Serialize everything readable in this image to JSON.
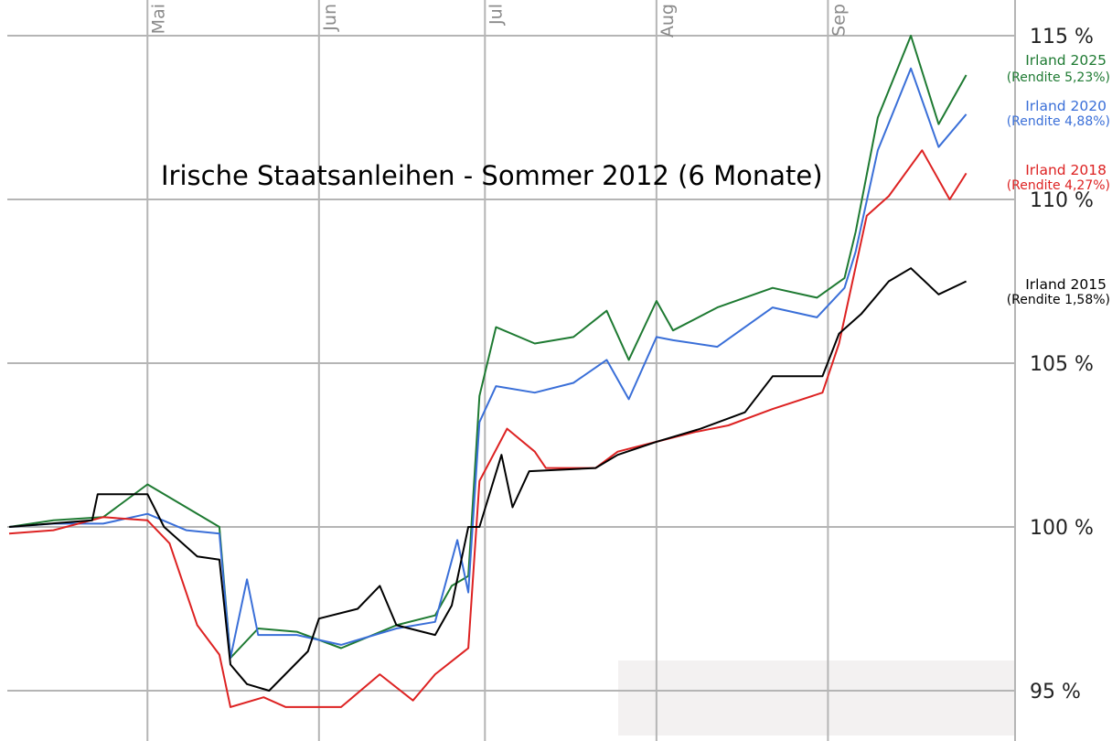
{
  "chart_data": {
    "type": "line",
    "title": "Irische Staatsanleihen - Sommer 2012 (6 Monate)",
    "xlabel": "",
    "ylabel": "",
    "x_range": [
      "2012-04-06",
      "2012-09-28"
    ],
    "ylim": [
      93,
      115.5
    ],
    "yticks": [
      {
        "value": 95,
        "label": "95 %"
      },
      {
        "value": 100,
        "label": "100 %"
      },
      {
        "value": 105,
        "label": "105 %"
      },
      {
        "value": 110,
        "label": "110 %"
      },
      {
        "value": 115,
        "label": "115 %"
      }
    ],
    "month_ticks": [
      {
        "date": "2012-05-01",
        "label": "Mai"
      },
      {
        "date": "2012-06-01",
        "label": "Jun"
      },
      {
        "date": "2012-07-01",
        "label": "Jul"
      },
      {
        "date": "2012-08-01",
        "label": "Aug"
      },
      {
        "date": "2012-09-01",
        "label": "Sep"
      }
    ],
    "grid": true,
    "legend": "right",
    "series": [
      {
        "name": "Irland 2025",
        "yield_label": "(Rendite 5,23%)",
        "color": "#1e7a32",
        "points": [
          [
            "2012-04-06",
            100.0
          ],
          [
            "2012-04-14",
            100.2
          ],
          [
            "2012-04-23",
            100.3
          ],
          [
            "2012-05-01",
            101.3
          ],
          [
            "2012-05-08",
            100.6
          ],
          [
            "2012-05-14",
            100.0
          ],
          [
            "2012-05-16",
            96.0
          ],
          [
            "2012-05-21",
            96.9
          ],
          [
            "2012-05-28",
            96.8
          ],
          [
            "2012-06-05",
            96.3
          ],
          [
            "2012-06-15",
            97.0
          ],
          [
            "2012-06-22",
            97.3
          ],
          [
            "2012-06-25",
            98.2
          ],
          [
            "2012-06-28",
            98.5
          ],
          [
            "2012-06-30",
            104.0
          ],
          [
            "2012-07-03",
            106.1
          ],
          [
            "2012-07-10",
            105.6
          ],
          [
            "2012-07-17",
            105.8
          ],
          [
            "2012-07-23",
            106.6
          ],
          [
            "2012-07-27",
            105.1
          ],
          [
            "2012-08-01",
            106.9
          ],
          [
            "2012-08-04",
            106.0
          ],
          [
            "2012-08-12",
            106.7
          ],
          [
            "2012-08-22",
            107.3
          ],
          [
            "2012-08-30",
            107.0
          ],
          [
            "2012-09-04",
            107.6
          ],
          [
            "2012-09-06",
            109.0
          ],
          [
            "2012-09-10",
            112.5
          ],
          [
            "2012-09-16",
            115.0
          ],
          [
            "2012-09-21",
            112.3
          ],
          [
            "2012-09-26",
            113.8
          ]
        ]
      },
      {
        "name": "Irland 2020",
        "yield_label": "(Rendite 4,88%)",
        "color": "#3a6fd8",
        "points": [
          [
            "2012-04-06",
            100.0
          ],
          [
            "2012-04-14",
            100.1
          ],
          [
            "2012-04-23",
            100.1
          ],
          [
            "2012-05-01",
            100.4
          ],
          [
            "2012-05-08",
            99.9
          ],
          [
            "2012-05-14",
            99.8
          ],
          [
            "2012-05-16",
            96.0
          ],
          [
            "2012-05-19",
            98.4
          ],
          [
            "2012-05-21",
            96.7
          ],
          [
            "2012-05-28",
            96.7
          ],
          [
            "2012-06-05",
            96.4
          ],
          [
            "2012-06-15",
            96.9
          ],
          [
            "2012-06-22",
            97.1
          ],
          [
            "2012-06-26",
            99.6
          ],
          [
            "2012-06-28",
            98.0
          ],
          [
            "2012-06-30",
            103.2
          ],
          [
            "2012-07-03",
            104.3
          ],
          [
            "2012-07-10",
            104.1
          ],
          [
            "2012-07-17",
            104.4
          ],
          [
            "2012-07-23",
            105.1
          ],
          [
            "2012-07-27",
            103.9
          ],
          [
            "2012-08-01",
            105.8
          ],
          [
            "2012-08-04",
            105.7
          ],
          [
            "2012-08-12",
            105.5
          ],
          [
            "2012-08-22",
            106.7
          ],
          [
            "2012-08-30",
            106.4
          ],
          [
            "2012-09-04",
            107.3
          ],
          [
            "2012-09-06",
            108.4
          ],
          [
            "2012-09-10",
            111.5
          ],
          [
            "2012-09-16",
            114.0
          ],
          [
            "2012-09-21",
            111.6
          ],
          [
            "2012-09-26",
            112.6
          ]
        ]
      },
      {
        "name": "Irland 2018",
        "yield_label": "(Rendite 4,27%)",
        "color": "#dd2222",
        "points": [
          [
            "2012-04-06",
            99.8
          ],
          [
            "2012-04-14",
            99.9
          ],
          [
            "2012-04-23",
            100.3
          ],
          [
            "2012-05-01",
            100.2
          ],
          [
            "2012-05-05",
            99.5
          ],
          [
            "2012-05-10",
            97.0
          ],
          [
            "2012-05-14",
            96.1
          ],
          [
            "2012-05-16",
            94.5
          ],
          [
            "2012-05-22",
            94.8
          ],
          [
            "2012-05-26",
            94.5
          ],
          [
            "2012-06-05",
            94.5
          ],
          [
            "2012-06-12",
            95.5
          ],
          [
            "2012-06-18",
            94.7
          ],
          [
            "2012-06-22",
            95.5
          ],
          [
            "2012-06-28",
            96.3
          ],
          [
            "2012-06-30",
            101.4
          ],
          [
            "2012-07-05",
            103.0
          ],
          [
            "2012-07-10",
            102.3
          ],
          [
            "2012-07-12",
            101.8
          ],
          [
            "2012-07-21",
            101.8
          ],
          [
            "2012-07-25",
            102.3
          ],
          [
            "2012-08-01",
            102.6
          ],
          [
            "2012-08-08",
            102.9
          ],
          [
            "2012-08-14",
            103.1
          ],
          [
            "2012-08-22",
            103.6
          ],
          [
            "2012-08-31",
            104.1
          ],
          [
            "2012-09-03",
            105.6
          ],
          [
            "2012-09-08",
            109.5
          ],
          [
            "2012-09-12",
            110.1
          ],
          [
            "2012-09-18",
            111.5
          ],
          [
            "2012-09-23",
            110.0
          ],
          [
            "2012-09-26",
            110.8
          ]
        ]
      },
      {
        "name": "Irland 2015",
        "yield_label": "(Rendite 1,58%)",
        "color": "#000000",
        "points": [
          [
            "2012-04-06",
            100.0
          ],
          [
            "2012-04-21",
            100.2
          ],
          [
            "2012-04-22",
            101.0
          ],
          [
            "2012-05-01",
            101.0
          ],
          [
            "2012-05-04",
            100.0
          ],
          [
            "2012-05-10",
            99.1
          ],
          [
            "2012-05-14",
            99.0
          ],
          [
            "2012-05-16",
            95.8
          ],
          [
            "2012-05-19",
            95.2
          ],
          [
            "2012-05-23",
            95.0
          ],
          [
            "2012-05-30",
            96.2
          ],
          [
            "2012-06-01",
            97.2
          ],
          [
            "2012-06-08",
            97.5
          ],
          [
            "2012-06-12",
            98.2
          ],
          [
            "2012-06-15",
            97.0
          ],
          [
            "2012-06-22",
            96.7
          ],
          [
            "2012-06-25",
            97.6
          ],
          [
            "2012-06-28",
            100.0
          ],
          [
            "2012-06-30",
            100.0
          ],
          [
            "2012-07-04",
            102.2
          ],
          [
            "2012-07-06",
            100.6
          ],
          [
            "2012-07-09",
            101.7
          ],
          [
            "2012-07-21",
            101.8
          ],
          [
            "2012-07-25",
            102.2
          ],
          [
            "2012-08-01",
            102.6
          ],
          [
            "2012-08-09",
            103.0
          ],
          [
            "2012-08-17",
            103.5
          ],
          [
            "2012-08-22",
            104.6
          ],
          [
            "2012-08-31",
            104.6
          ],
          [
            "2012-09-03",
            105.9
          ],
          [
            "2012-09-07",
            106.5
          ],
          [
            "2012-09-12",
            107.5
          ],
          [
            "2012-09-16",
            107.9
          ],
          [
            "2012-09-21",
            107.1
          ],
          [
            "2012-09-26",
            107.5
          ]
        ]
      }
    ]
  }
}
